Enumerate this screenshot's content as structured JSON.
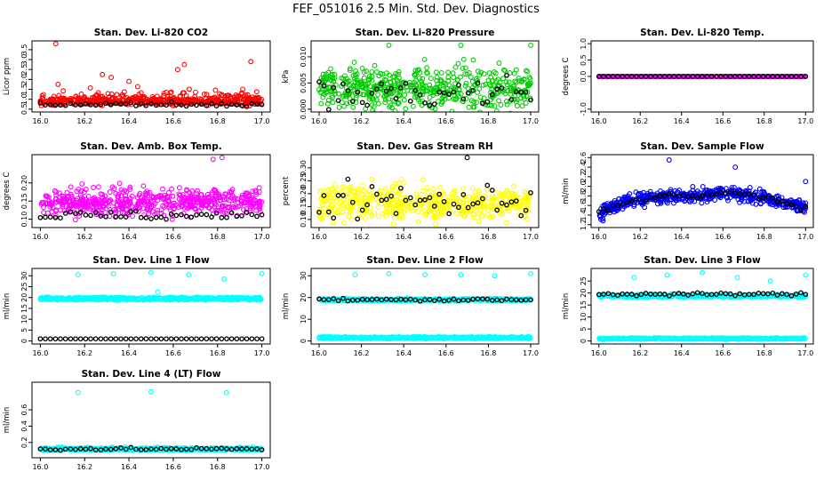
{
  "title": "FEF_051016  2.5 Min. Std. Dev. Diagnostics",
  "colors": {
    "red": "#ff0000",
    "green": "#00cc00",
    "magenta": "#ff00ff",
    "yellow": "#ffff00",
    "blue": "#0000ff",
    "cyan": "#00ffff",
    "black": "#000000"
  },
  "chart_data": [
    {
      "type": "scatter",
      "title": "Stan. Dev. Li-820 CO2",
      "xlabel": "",
      "ylabel": "Licor ppm",
      "xlim": [
        16.0,
        17.0
      ],
      "ylim": [
        0.5,
        3.8
      ],
      "xticks": [
        "16.0",
        "16.2",
        "16.4",
        "16.6",
        "16.8",
        "17.0"
      ],
      "yticks": [
        "0.5",
        "1.0",
        "1.5",
        "2.0",
        "2.5",
        "3.0",
        "3.5"
      ],
      "series": [
        {
          "color": "#ff0000",
          "n": 560,
          "base": 0.85,
          "spread": 0.12,
          "skew": 0.35,
          "outliers": [
            [
              16.07,
              3.8
            ],
            [
              16.28,
              2.25
            ],
            [
              16.32,
              2.1
            ],
            [
              16.65,
              2.75
            ],
            [
              16.62,
              2.5
            ],
            [
              16.95,
              2.9
            ],
            [
              16.4,
              1.9
            ],
            [
              16.08,
              1.75
            ]
          ]
        },
        {
          "color": "#000000",
          "n": 45,
          "base": 0.72,
          "spread": 0.06,
          "skew": 0.05,
          "outliers": []
        }
      ]
    },
    {
      "type": "scatter",
      "title": "Stan. Dev. Li-820 Pressure",
      "xlabel": "",
      "ylabel": "kPa",
      "xlim": [
        16.0,
        17.0
      ],
      "ylim": [
        0.0,
        0.0125
      ],
      "xticks": [
        "16.0",
        "16.2",
        "16.4",
        "16.6",
        "16.8",
        "17.0"
      ],
      "yticks": [
        "0.000",
        "0.005",
        "0.010"
      ],
      "series": [
        {
          "color": "#00cc00",
          "n": 520,
          "base": 0.004,
          "spread": 0.0028,
          "skew": 0.0,
          "outliers": [
            [
              16.33,
              0.0122
            ],
            [
              16.67,
              0.0122
            ],
            [
              17.0,
              0.0122
            ]
          ]
        },
        {
          "color": "#000000",
          "n": 45,
          "base": 0.003,
          "spread": 0.0025,
          "skew": 0.0,
          "outliers": []
        }
      ]
    },
    {
      "type": "scatter",
      "title": "Stan. Dev. Li-820 Temp.",
      "xlabel": "",
      "ylabel": "degrees C",
      "xlim": [
        16.0,
        17.0
      ],
      "ylim": [
        -1.0,
        1.0
      ],
      "xticks": [
        "16.0",
        "16.2",
        "16.4",
        "16.6",
        "16.8",
        "17.0"
      ],
      "yticks": [
        "-1.0",
        "0.0",
        "0.5",
        "1.0"
      ],
      "series": [
        {
          "color": "#ff00ff",
          "n": 560,
          "base": 0.0,
          "spread": 0.0,
          "skew": 0.0,
          "outliers": []
        },
        {
          "color": "#000000",
          "n": 45,
          "base": 0.0,
          "spread": 0.0,
          "skew": 0.0,
          "outliers": []
        }
      ]
    },
    {
      "type": "scatter",
      "title": "Stan. Dev. Amb. Box Temp.",
      "xlabel": "",
      "ylabel": "degrees C",
      "xlim": [
        16.0,
        17.0
      ],
      "ylim": [
        0.085,
        0.27
      ],
      "xticks": [
        "16.0",
        "16.2",
        "16.4",
        "16.6",
        "16.8",
        "17.0"
      ],
      "yticks": [
        "0.10",
        "0.15",
        "0.20"
      ],
      "series": [
        {
          "color": "#ff00ff",
          "n": 560,
          "base": 0.145,
          "spread": 0.025,
          "skew": 0.012,
          "outliers": [
            [
              16.78,
              0.265
            ],
            [
              16.82,
              0.27
            ]
          ]
        },
        {
          "color": "#000000",
          "n": 45,
          "base": 0.11,
          "spread": 0.01,
          "skew": 0.0,
          "outliers": []
        }
      ]
    },
    {
      "type": "scatter",
      "title": "Stan. Dev. Gas Stream RH",
      "xlabel": "",
      "ylabel": "percent",
      "xlim": [
        16.0,
        17.0
      ],
      "ylim": [
        0.08,
        0.34
      ],
      "xticks": [
        "16.0",
        "16.2",
        "16.4",
        "16.6",
        "16.8",
        "17.0"
      ],
      "yticks": [
        "0.10",
        "0.15",
        "0.20",
        "0.25",
        "0.30"
      ],
      "series": [
        {
          "color": "#ffff00",
          "n": 520,
          "base": 0.16,
          "spread": 0.045,
          "skew": 0.02,
          "outliers": []
        },
        {
          "color": "#000000",
          "n": 45,
          "base": 0.17,
          "spread": 0.045,
          "skew": 0.0,
          "outliers": [
            [
              16.7,
              0.34
            ]
          ]
        }
      ]
    },
    {
      "type": "scatter",
      "title": "Stan. Dev. Sample Flow",
      "xlabel": "",
      "ylabel": "ml/min",
      "xlim": [
        16.0,
        17.0
      ],
      "ylim": [
        1.2,
        2.6
      ],
      "xticks": [
        "16.0",
        "16.2",
        "16.4",
        "16.6",
        "16.8",
        "17.0"
      ],
      "yticks": [
        "1.2",
        "1.4",
        "1.6",
        "1.8",
        "2.0",
        "2.2",
        "2.4",
        "2.6"
      ],
      "curve": [
        [
          16.0,
          1.45
        ],
        [
          16.1,
          1.62
        ],
        [
          16.2,
          1.72
        ],
        [
          16.3,
          1.78
        ],
        [
          16.4,
          1.8
        ],
        [
          16.5,
          1.8
        ],
        [
          16.6,
          1.86
        ],
        [
          16.7,
          1.82
        ],
        [
          16.8,
          1.76
        ],
        [
          16.9,
          1.65
        ],
        [
          17.0,
          1.55
        ]
      ],
      "series": [
        {
          "color": "#0000ff",
          "n": 560,
          "base": 0.0,
          "spread": 0.1,
          "skew": 0.02,
          "outliers": [
            [
              16.34,
              2.55
            ],
            [
              16.66,
              2.4
            ],
            [
              17.0,
              2.1
            ],
            [
              16.02,
              1.28
            ]
          ]
        },
        {
          "color": "#000000",
          "n": 45,
          "base": 0.0,
          "spread": 0.04,
          "skew": 0.0,
          "outliers": []
        }
      ]
    },
    {
      "type": "scatter",
      "title": "Stan. Dev. Line 1 Flow",
      "xlabel": "",
      "ylabel": "ml/min",
      "xlim": [
        16.0,
        17.0
      ],
      "ylim": [
        0,
        32
      ],
      "xticks": [
        "16.0",
        "16.2",
        "16.4",
        "16.6",
        "16.8",
        "17.0"
      ],
      "yticks": [
        "0",
        "5",
        "10",
        "15",
        "20",
        "25",
        "30"
      ],
      "series": [
        {
          "color": "#00ffff",
          "n": 560,
          "base": 19.5,
          "spread": 0.5,
          "skew": 0.0,
          "outliers": [
            [
              16.17,
              30.5
            ],
            [
              16.33,
              31.0
            ],
            [
              16.5,
              31.5
            ],
            [
              16.67,
              30.5
            ],
            [
              16.83,
              28.5
            ],
            [
              17.0,
              31.0
            ],
            [
              16.53,
              22.5
            ]
          ]
        },
        {
          "color": "#000000",
          "n": 45,
          "base": 1.0,
          "spread": 0.0,
          "skew": 0.0,
          "outliers": []
        }
      ]
    },
    {
      "type": "scatter",
      "title": "Stan. Dev. Line 2 Flow",
      "xlabel": "",
      "ylabel": "ml/min",
      "xlim": [
        16.0,
        17.0
      ],
      "ylim": [
        0,
        32
      ],
      "xticks": [
        "16.0",
        "16.2",
        "16.4",
        "16.6",
        "16.8",
        "17.0"
      ],
      "yticks": [
        "0",
        "10",
        "20",
        "30"
      ],
      "series": [
        {
          "color": "#00ffff",
          "n": 560,
          "base": 1.5,
          "spread": 0.3,
          "skew": 0.0,
          "outliers": [
            [
              16.17,
              30.5
            ],
            [
              16.33,
              31.0
            ],
            [
              16.5,
              30.5
            ],
            [
              16.67,
              30.5
            ],
            [
              16.83,
              30.0
            ],
            [
              17.0,
              31.0
            ]
          ]
        },
        {
          "color": "#00ffff",
          "n": 560,
          "base": 19.0,
          "spread": 0.4,
          "skew": 0.0,
          "outliers": []
        },
        {
          "color": "#000000",
          "n": 45,
          "base": 19.0,
          "spread": 0.4,
          "skew": 0.0,
          "outliers": []
        }
      ]
    },
    {
      "type": "scatter",
      "title": "Stan. Dev. Line 3 Flow",
      "xlabel": "",
      "ylabel": "ml/min",
      "xlim": [
        16.0,
        17.0
      ],
      "ylim": [
        0,
        29
      ],
      "xticks": [
        "16.0",
        "16.2",
        "16.4",
        "16.6",
        "16.8",
        "17.0"
      ],
      "yticks": [
        "0",
        "5",
        "10",
        "15",
        "20",
        "25"
      ],
      "series": [
        {
          "color": "#00ffff",
          "n": 560,
          "base": 1.0,
          "spread": 0.2,
          "skew": 0.0,
          "outliers": [
            [
              16.17,
              26.5
            ],
            [
              16.33,
              27.5
            ],
            [
              16.5,
              28.5
            ],
            [
              16.67,
              26.5
            ],
            [
              16.83,
              25.0
            ],
            [
              17.0,
              27.5
            ]
          ]
        },
        {
          "color": "#00ffff",
          "n": 560,
          "base": 18.8,
          "spread": 0.4,
          "skew": 0.0,
          "outliers": []
        },
        {
          "color": "#000000",
          "n": 45,
          "base": 19.5,
          "spread": 0.4,
          "skew": 0.0,
          "outliers": []
        }
      ]
    },
    {
      "type": "scatter",
      "title": "Stan. Dev. Line 4 (LT) Flow",
      "xlabel": "",
      "ylabel": "ml/min",
      "xlim": [
        16.0,
        17.0
      ],
      "ylim": [
        0.05,
        0.9
      ],
      "xticks": [
        "16.0",
        "16.2",
        "16.4",
        "16.6",
        "16.8",
        "17.0"
      ],
      "yticks": [
        "0.2",
        "0.4",
        "0.6"
      ],
      "series": [
        {
          "color": "#00ffff",
          "n": 560,
          "base": 0.12,
          "spread": 0.012,
          "skew": 0.0,
          "outliers": [
            [
              16.17,
              0.81
            ],
            [
              16.5,
              0.82
            ],
            [
              16.84,
              0.81
            ]
          ]
        },
        {
          "color": "#000000",
          "n": 45,
          "base": 0.12,
          "spread": 0.01,
          "skew": 0.0,
          "outliers": []
        }
      ]
    }
  ]
}
